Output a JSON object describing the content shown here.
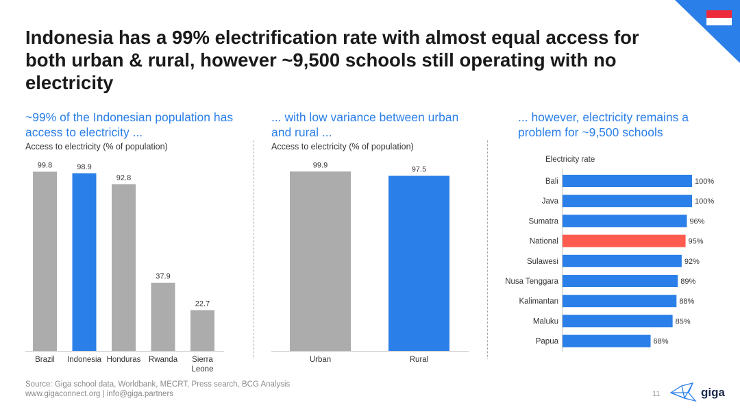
{
  "title": "Indonesia has a 99% electrification rate with almost equal access for both urban & rural, however ~9,500 schools still operating with no electricity",
  "colors": {
    "accent": "#2b7fe8",
    "grey": "#acacac",
    "highlight": "#ff5a4e",
    "corner": "#2b7fe8"
  },
  "flag": {
    "name": "indonesia-flag-icon",
    "top": "#ee2b3a",
    "bottom": "#ffffff"
  },
  "panel1": {
    "subtitle": "~99% of the Indonesian population has access to electricity ...",
    "metric": "Access to electricity (% of population)"
  },
  "panel2": {
    "subtitle": "... with low variance between urban and rural ...",
    "metric": "Access to electricity (% of population)"
  },
  "panel3": {
    "subtitle": "... however, electricity remains a problem for ~9,500 schools",
    "metric": "Electricity rate"
  },
  "chart_data": [
    {
      "type": "bar",
      "categories": [
        "Brazil",
        "Indonesia",
        "Honduras",
        "Rwanda",
        "Sierra Leone"
      ],
      "values": [
        99.8,
        98.9,
        92.8,
        37.9,
        22.7
      ],
      "value_labels": [
        "99.8",
        "98.9",
        "92.8",
        "37.9",
        "22.7"
      ],
      "highlight": [
        "Indonesia"
      ],
      "ylabel": "Access to electricity (% of population)",
      "ylim": [
        0,
        100
      ]
    },
    {
      "type": "bar",
      "categories": [
        "Urban",
        "Rural"
      ],
      "values": [
        99.9,
        97.5
      ],
      "value_labels": [
        "99.9",
        "97.5"
      ],
      "highlight": [
        "Rural"
      ],
      "ylabel": "Access to electricity (% of population)",
      "ylim": [
        0,
        100
      ]
    },
    {
      "type": "bar",
      "orientation": "horizontal",
      "title": "Electricity rate",
      "categories": [
        "Bali",
        "Java",
        "Sumatra",
        "National",
        "Sulawesi",
        "Nusa Tenggara",
        "Kalimantan",
        "Maluku",
        "Papua"
      ],
      "values": [
        100,
        100,
        96,
        95,
        92,
        89,
        88,
        85,
        68
      ],
      "value_labels": [
        "100%",
        "100%",
        "96%",
        "95%",
        "92%",
        "89%",
        "88%",
        "85%",
        "68%"
      ],
      "highlight": [
        "National"
      ],
      "xlim": [
        0,
        100
      ]
    }
  ],
  "footer": {
    "source": "Source: Giga school data, Worldbank, MECRT, Press search, BCG Analysis",
    "contact": "www.gigaconnect.org  |  info@giga.partners",
    "page": "11",
    "logo_text": "giga"
  }
}
